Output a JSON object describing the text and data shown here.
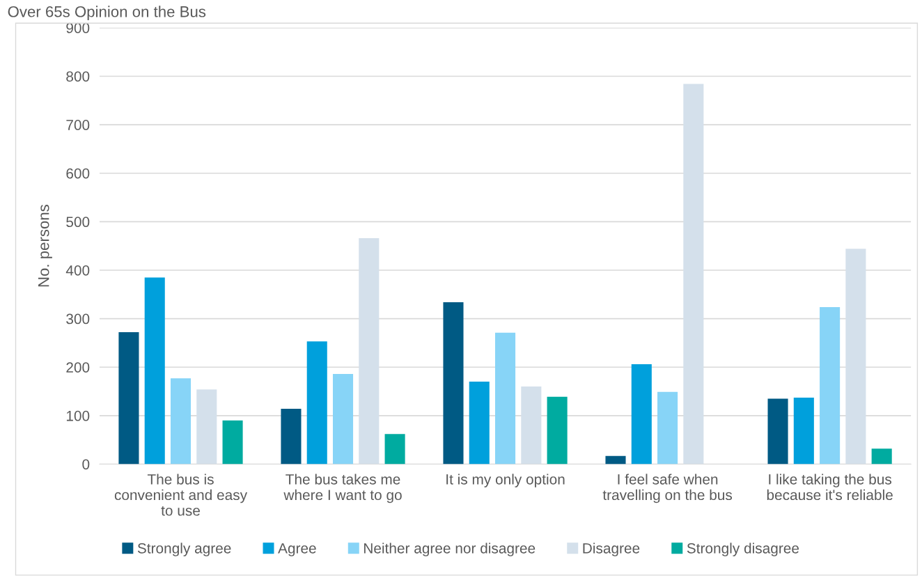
{
  "chart_data": {
    "type": "bar",
    "title": "Over 65s Opinion on the Bus",
    "ylabel": "No. persons",
    "categories": [
      "The bus is\nconvenient and easy\nto use",
      "The bus takes me\nwhere I want to go",
      "It is my only option",
      "I feel safe when\ntravelling on the bus",
      "I like taking the bus\nbecause it's reliable"
    ],
    "series": [
      {
        "name": "Strongly agree",
        "color": "#005a84",
        "values": [
          272,
          114,
          334,
          17,
          135
        ]
      },
      {
        "name": "Agree",
        "color": "#00a0dc",
        "values": [
          385,
          253,
          170,
          206,
          137
        ]
      },
      {
        "name": "Neither agree nor disagree",
        "color": "#87d4f7",
        "values": [
          177,
          186,
          271,
          149,
          324
        ]
      },
      {
        "name": "Disagree",
        "color": "#d4e0eb",
        "values": [
          154,
          466,
          160,
          784,
          444
        ]
      },
      {
        "name": "Strongly disagree",
        "color": "#00aba0",
        "values": [
          90,
          62,
          139,
          null,
          32
        ]
      }
    ],
    "ylim": [
      0,
      900
    ],
    "yticks": [
      0,
      100,
      200,
      300,
      400,
      500,
      600,
      700,
      800,
      900
    ],
    "grid": "y",
    "legend": "bottom"
  }
}
